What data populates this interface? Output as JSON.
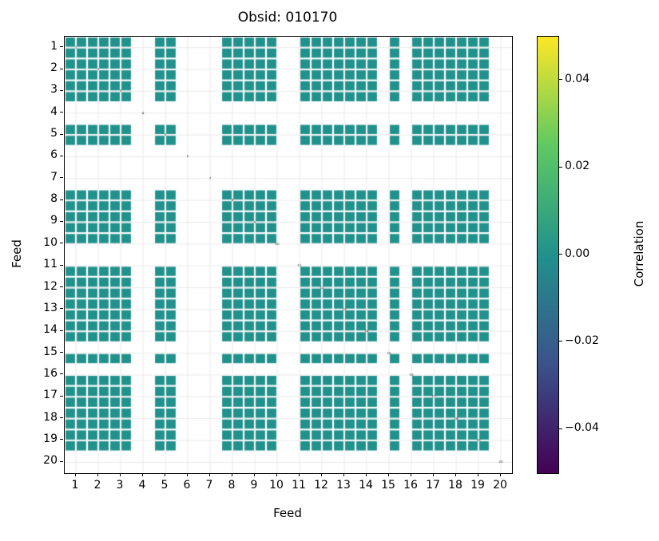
{
  "chart_data": {
    "type": "heatmap",
    "title": "Obsid: 010170",
    "xlabel": "Feed",
    "ylabel": "Feed",
    "x_ticks": [
      "1",
      "2",
      "3",
      "4",
      "5",
      "6",
      "7",
      "8",
      "9",
      "10",
      "11",
      "12",
      "13",
      "14",
      "15",
      "16",
      "17",
      "18",
      "19",
      "20"
    ],
    "y_ticks": [
      "1",
      "2",
      "3",
      "4",
      "5",
      "6",
      "7",
      "8",
      "9",
      "10",
      "11",
      "12",
      "13",
      "14",
      "15",
      "16",
      "17",
      "18",
      "19",
      "20"
    ],
    "n_feeds": 20,
    "bands_per_feed": 2,
    "active_feeds": [
      1,
      2,
      3,
      5,
      8,
      9,
      10,
      11,
      12,
      13,
      14,
      15,
      16,
      17,
      18,
      19
    ],
    "masked_feeds": [
      4,
      6,
      7,
      20
    ],
    "masked_bands": [
      "10-2",
      "11-1",
      "15-1",
      "16-1"
    ],
    "cell_value": 0.0,
    "cell_color": "#21918c",
    "diagonal_labels": [
      "1",
      "2",
      "3",
      "4",
      "5",
      "6",
      "7",
      "8",
      "9",
      "10",
      "11",
      "12",
      "13",
      "14",
      "15",
      "16",
      "17",
      "18",
      "19",
      "20"
    ],
    "diagonal_label_color": "#1c1c1c",
    "grid": true,
    "grid_color": "#e9e9e9",
    "colorbar": {
      "label": "Correlation",
      "ticks": [
        "0.04",
        "0.02",
        "0.00",
        "−0.02",
        "−0.04"
      ],
      "tick_values": [
        0.04,
        0.02,
        0.0,
        -0.02,
        -0.04
      ],
      "vmin": -0.05,
      "vmax": 0.05,
      "colormap": "viridis",
      "gradient": [
        "#fde725",
        "#5ec962",
        "#21918c",
        "#3b528b",
        "#440154"
      ]
    }
  }
}
